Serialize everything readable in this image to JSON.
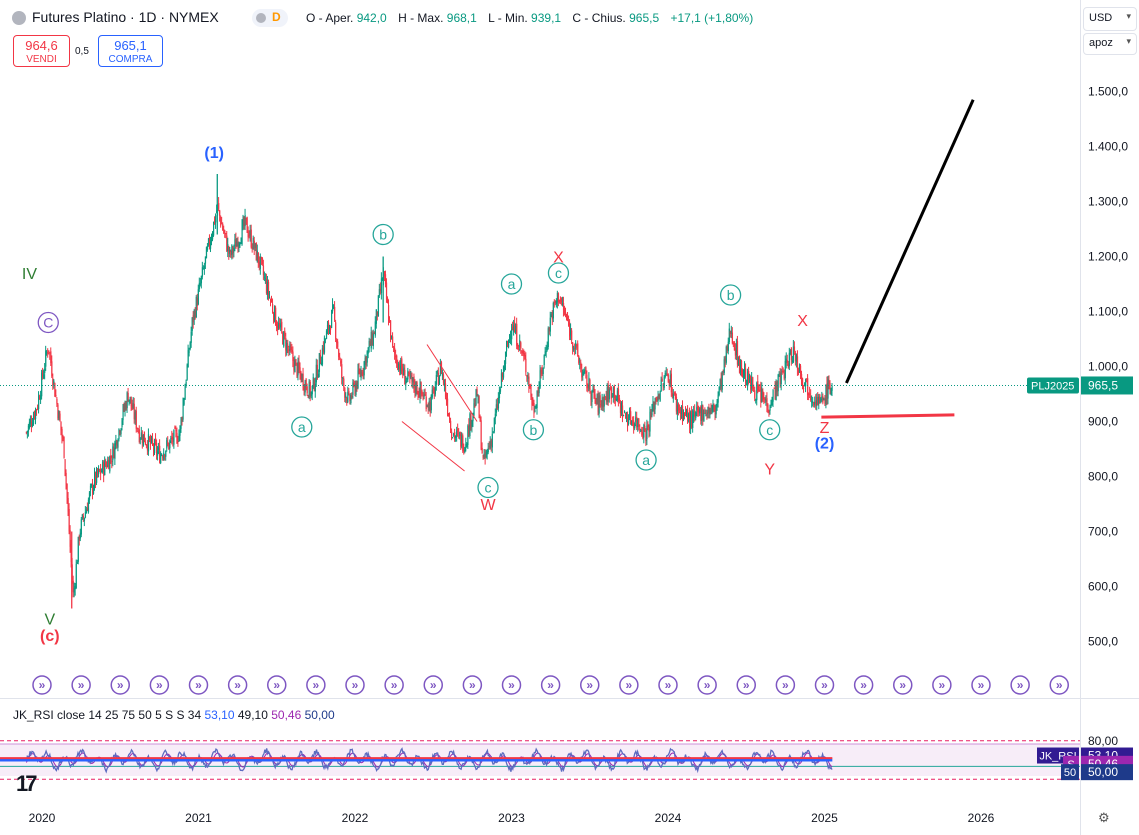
{
  "header": {
    "title": "Futures Platino · 1D · NYMEX",
    "badge_letter": "D",
    "ohlc": {
      "open_label": "O - Aper.",
      "open": "942,0",
      "high_label": "H - Max.",
      "high": "968,1",
      "low_label": "L - Min.",
      "low": "939,1",
      "close_label": "C - Chius.",
      "close": "965,5",
      "change": "+17,1 (+1,80%)"
    }
  },
  "trade": {
    "sell_price": "964,6",
    "sell_label": "VENDI",
    "spread": "0,5",
    "buy_price": "965,1",
    "buy_label": "COMPRA"
  },
  "toolbar": {
    "currency": "USD",
    "unit": "apoz"
  },
  "rsi_header": {
    "name": "JK_RSI",
    "params": "close 14 25 75 50 5 S S 34",
    "v1": "53,10",
    "v2": "49,10",
    "v3": "50,46",
    "v4": "50,00"
  },
  "colors": {
    "up": "#089981",
    "down": "#f23645",
    "blue": "#2962ff",
    "wave_green": "#26a69a",
    "wave_red": "#f23645",
    "purple": "#7e57c2"
  },
  "chart_data": [
    {
      "type": "candlestick",
      "title": "Futures Platino · 1D · NYMEX",
      "x_ticks": [
        "2020",
        "2021",
        "2022",
        "2023",
        "2024",
        "2025",
        "2026"
      ],
      "y_ticks": [
        "1.500,0",
        "1.400,0",
        "1.300,0",
        "1.200,0",
        "1.100,0",
        "1.000,0",
        "900,0",
        "800,0",
        "700,0",
        "600,0",
        "500,0"
      ],
      "ylim": [
        420,
        1630
      ],
      "last_price": 965.5,
      "last_price_label": "965,5",
      "symbol_label": "PLJ2025",
      "price_path": [
        {
          "x": 2019.9,
          "y": 880
        },
        {
          "x": 2019.97,
          "y": 930
        },
        {
          "x": 2020.04,
          "y": 1040
        },
        {
          "x": 2020.08,
          "y": 960
        },
        {
          "x": 2020.14,
          "y": 850
        },
        {
          "x": 2020.2,
          "y": 580
        },
        {
          "x": 2020.24,
          "y": 700
        },
        {
          "x": 2020.33,
          "y": 790
        },
        {
          "x": 2020.45,
          "y": 840
        },
        {
          "x": 2020.55,
          "y": 950
        },
        {
          "x": 2020.62,
          "y": 880
        },
        {
          "x": 2020.75,
          "y": 840
        },
        {
          "x": 2020.88,
          "y": 880
        },
        {
          "x": 2020.96,
          "y": 1080
        },
        {
          "x": 2021.05,
          "y": 1200
        },
        {
          "x": 2021.12,
          "y": 1290
        },
        {
          "x": 2021.2,
          "y": 1200
        },
        {
          "x": 2021.3,
          "y": 1260
        },
        {
          "x": 2021.4,
          "y": 1180
        },
        {
          "x": 2021.5,
          "y": 1080
        },
        {
          "x": 2021.62,
          "y": 1000
        },
        {
          "x": 2021.72,
          "y": 950
        },
        {
          "x": 2021.8,
          "y": 1040
        },
        {
          "x": 2021.86,
          "y": 1100
        },
        {
          "x": 2021.92,
          "y": 970
        },
        {
          "x": 2021.96,
          "y": 935
        },
        {
          "x": 2022.05,
          "y": 1000
        },
        {
          "x": 2022.12,
          "y": 1060
        },
        {
          "x": 2022.18,
          "y": 1170
        },
        {
          "x": 2022.24,
          "y": 1030
        },
        {
          "x": 2022.32,
          "y": 980
        },
        {
          "x": 2022.4,
          "y": 960
        },
        {
          "x": 2022.48,
          "y": 930
        },
        {
          "x": 2022.55,
          "y": 1000
        },
        {
          "x": 2022.62,
          "y": 880
        },
        {
          "x": 2022.7,
          "y": 860
        },
        {
          "x": 2022.78,
          "y": 950
        },
        {
          "x": 2022.82,
          "y": 820
        },
        {
          "x": 2022.88,
          "y": 880
        },
        {
          "x": 2022.94,
          "y": 980
        },
        {
          "x": 2023.0,
          "y": 1080
        },
        {
          "x": 2023.05,
          "y": 1040
        },
        {
          "x": 2023.1,
          "y": 990
        },
        {
          "x": 2023.14,
          "y": 920
        },
        {
          "x": 2023.2,
          "y": 1000
        },
        {
          "x": 2023.25,
          "y": 1090
        },
        {
          "x": 2023.3,
          "y": 1130
        },
        {
          "x": 2023.38,
          "y": 1060
        },
        {
          "x": 2023.45,
          "y": 990
        },
        {
          "x": 2023.55,
          "y": 930
        },
        {
          "x": 2023.65,
          "y": 960
        },
        {
          "x": 2023.72,
          "y": 910
        },
        {
          "x": 2023.8,
          "y": 900
        },
        {
          "x": 2023.86,
          "y": 880
        },
        {
          "x": 2023.92,
          "y": 940
        },
        {
          "x": 2024.0,
          "y": 990
        },
        {
          "x": 2024.05,
          "y": 930
        },
        {
          "x": 2024.15,
          "y": 900
        },
        {
          "x": 2024.22,
          "y": 920
        },
        {
          "x": 2024.3,
          "y": 920
        },
        {
          "x": 2024.36,
          "y": 1000
        },
        {
          "x": 2024.4,
          "y": 1070
        },
        {
          "x": 2024.46,
          "y": 1000
        },
        {
          "x": 2024.52,
          "y": 970
        },
        {
          "x": 2024.58,
          "y": 950
        },
        {
          "x": 2024.64,
          "y": 930
        },
        {
          "x": 2024.72,
          "y": 980
        },
        {
          "x": 2024.8,
          "y": 1030
        },
        {
          "x": 2024.86,
          "y": 980
        },
        {
          "x": 2024.92,
          "y": 950
        },
        {
          "x": 2024.98,
          "y": 930
        },
        {
          "x": 2025.02,
          "y": 960
        },
        {
          "x": 2025.05,
          "y": 965.5
        }
      ],
      "annotations": [
        {
          "text": "(1)",
          "x": 2021.1,
          "y": 1390,
          "color": "#2962ff",
          "circle": false
        },
        {
          "text": "IV",
          "x": 2019.92,
          "y": 1170,
          "color": "#2e7d32",
          "circle": false
        },
        {
          "text": "C",
          "x": 2020.04,
          "y": 1080,
          "color": "#7e57c2",
          "circle": true
        },
        {
          "text": "V",
          "x": 2020.05,
          "y": 542,
          "color": "#2e7d32",
          "circle": false
        },
        {
          "text": "(c)",
          "x": 2020.05,
          "y": 512,
          "color": "#f23645",
          "circle": false
        },
        {
          "text": "b",
          "x": 2022.18,
          "y": 1240,
          "color": "#26a69a",
          "circle": true
        },
        {
          "text": "a",
          "x": 2021.66,
          "y": 890,
          "color": "#26a69a",
          "circle": true
        },
        {
          "text": "c",
          "x": 2022.85,
          "y": 780,
          "color": "#26a69a",
          "circle": true
        },
        {
          "text": "W",
          "x": 2022.85,
          "y": 750,
          "color": "#f23645",
          "circle": false
        },
        {
          "text": "X",
          "x": 2023.3,
          "y": 1200,
          "color": "#f23645",
          "circle": false
        },
        {
          "text": "a",
          "x": 2023.0,
          "y": 1150,
          "color": "#26a69a",
          "circle": true
        },
        {
          "text": "c",
          "x": 2023.3,
          "y": 1170,
          "color": "#26a69a",
          "circle": true
        },
        {
          "text": "b",
          "x": 2023.14,
          "y": 885,
          "color": "#26a69a",
          "circle": true
        },
        {
          "text": "a",
          "x": 2023.86,
          "y": 830,
          "color": "#26a69a",
          "circle": true
        },
        {
          "text": "b",
          "x": 2024.4,
          "y": 1130,
          "color": "#26a69a",
          "circle": true
        },
        {
          "text": "X",
          "x": 2024.86,
          "y": 1085,
          "color": "#f23645",
          "circle": false
        },
        {
          "text": "c",
          "x": 2024.65,
          "y": 885,
          "color": "#26a69a",
          "circle": true
        },
        {
          "text": "Y",
          "x": 2024.65,
          "y": 815,
          "color": "#f23645",
          "circle": false
        },
        {
          "text": "Z",
          "x": 2025.0,
          "y": 890,
          "color": "#f23645",
          "circle": false
        },
        {
          "text": "(2)",
          "x": 2025.0,
          "y": 862,
          "color": "#2962ff",
          "circle": false
        }
      ],
      "projection": [
        {
          "x": 2025.14,
          "y": 970
        },
        {
          "x": 2025.95,
          "y": 1485
        }
      ],
      "support_line": [
        {
          "x": 2024.98,
          "y": 908
        },
        {
          "x": 2025.83,
          "y": 912
        }
      ],
      "triangle": [
        {
          "x": 2022.46,
          "y": 1040
        },
        {
          "x": 2022.78,
          "y": 900
        },
        {
          "x": 2022.3,
          "y": 900
        },
        {
          "x": 2022.7,
          "y": 810
        }
      ],
      "event_markers": [
        "2020.0",
        "2020.25",
        "2020.5",
        "2020.75",
        "2021.0",
        "2021.25",
        "2021.5",
        "2021.75",
        "2022.0",
        "2022.25",
        "2022.5",
        "2022.75",
        "2023.0",
        "2023.25",
        "2023.5",
        "2023.75",
        "2024.0",
        "2024.25",
        "2024.5",
        "2024.75",
        "2025.0",
        "2025.25",
        "2025.5",
        "2025.75",
        "2026.0",
        "2026.25",
        "2026.5"
      ]
    },
    {
      "type": "line",
      "title": "JK_RSI close 14 25 75 50 5 S S 34",
      "y_ticks": [
        "80,00"
      ],
      "ylim": [
        10,
        90
      ],
      "series": [
        {
          "name": "JK_RSI",
          "value": "53,10",
          "color": "#2962ff"
        },
        {
          "name": "S",
          "value": "50,46",
          "color": "#9c27b0"
        },
        {
          "name": "50",
          "value": "50,00",
          "color": "#1e3a8a"
        },
        {
          "name": "",
          "value": "49,10",
          "color": "#131722"
        }
      ],
      "bands": {
        "upper": 75,
        "lower": 25
      }
    }
  ]
}
